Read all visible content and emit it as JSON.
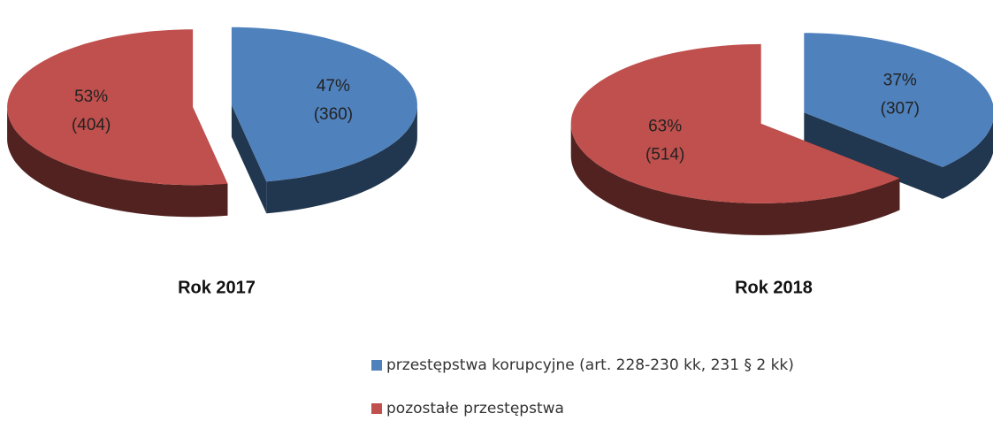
{
  "chart_data": [
    {
      "type": "pie",
      "title": "Rok 2017",
      "values": [
        47,
        53
      ],
      "value_labels": [
        "47%",
        "53%"
      ],
      "count_labels": [
        "(360)",
        "(404)"
      ]
    },
    {
      "type": "pie",
      "title": "Rok 2018",
      "values": [
        37,
        63
      ],
      "value_labels": [
        "37%",
        "63%"
      ],
      "count_labels": [
        "(307)",
        "(514)"
      ]
    }
  ],
  "legend": [
    {
      "name": "przestępstwa korupcyjne (art. 228-230 kk, 231 § 2 kk)",
      "color": "#4f81bd"
    },
    {
      "name": "pozostałe przestępstwa",
      "color": "#c0504d"
    }
  ]
}
